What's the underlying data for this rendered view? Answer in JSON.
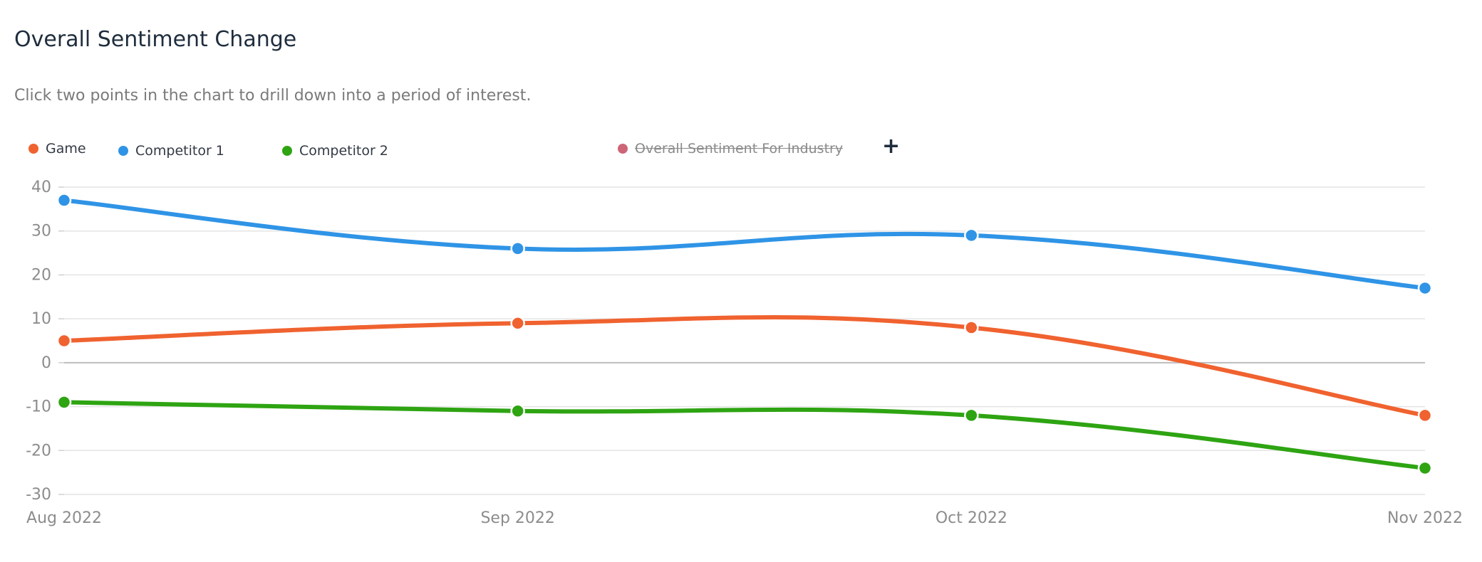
{
  "header": {
    "title": "Overall Sentiment Change",
    "subtitle": "Click two points in the chart to drill down into a period of interest."
  },
  "legend": {
    "add_icon": "plus-icon",
    "items": [
      {
        "label": "Game",
        "color": "#f0622f",
        "hidden": false
      },
      {
        "label": "Competitor 1",
        "color": "#2f94e6",
        "hidden": false
      },
      {
        "label": "Competitor 2",
        "color": "#2ea412",
        "hidden": false
      },
      {
        "label": "Overall Sentiment For Industry",
        "color": "#cc6677",
        "hidden": true
      }
    ]
  },
  "chart_data": {
    "type": "line",
    "title": "Overall Sentiment Change",
    "xlabel": "",
    "ylabel": "",
    "categories": [
      "Aug 2022",
      "Sep 2022",
      "Oct 2022",
      "Nov 2022"
    ],
    "ylim": [
      -30,
      40
    ],
    "yticks": [
      40,
      30,
      20,
      10,
      0,
      -10,
      -20,
      -30
    ],
    "grid": true,
    "legend_position": "top-left",
    "series": [
      {
        "name": "Game",
        "color": "#f0622f",
        "values": [
          5,
          9,
          8,
          -12
        ]
      },
      {
        "name": "Competitor 1",
        "color": "#2f94e6",
        "values": [
          37,
          26,
          29,
          17
        ]
      },
      {
        "name": "Competitor 2",
        "color": "#2ea412",
        "values": [
          -9,
          -11,
          -12,
          -24
        ]
      }
    ]
  }
}
